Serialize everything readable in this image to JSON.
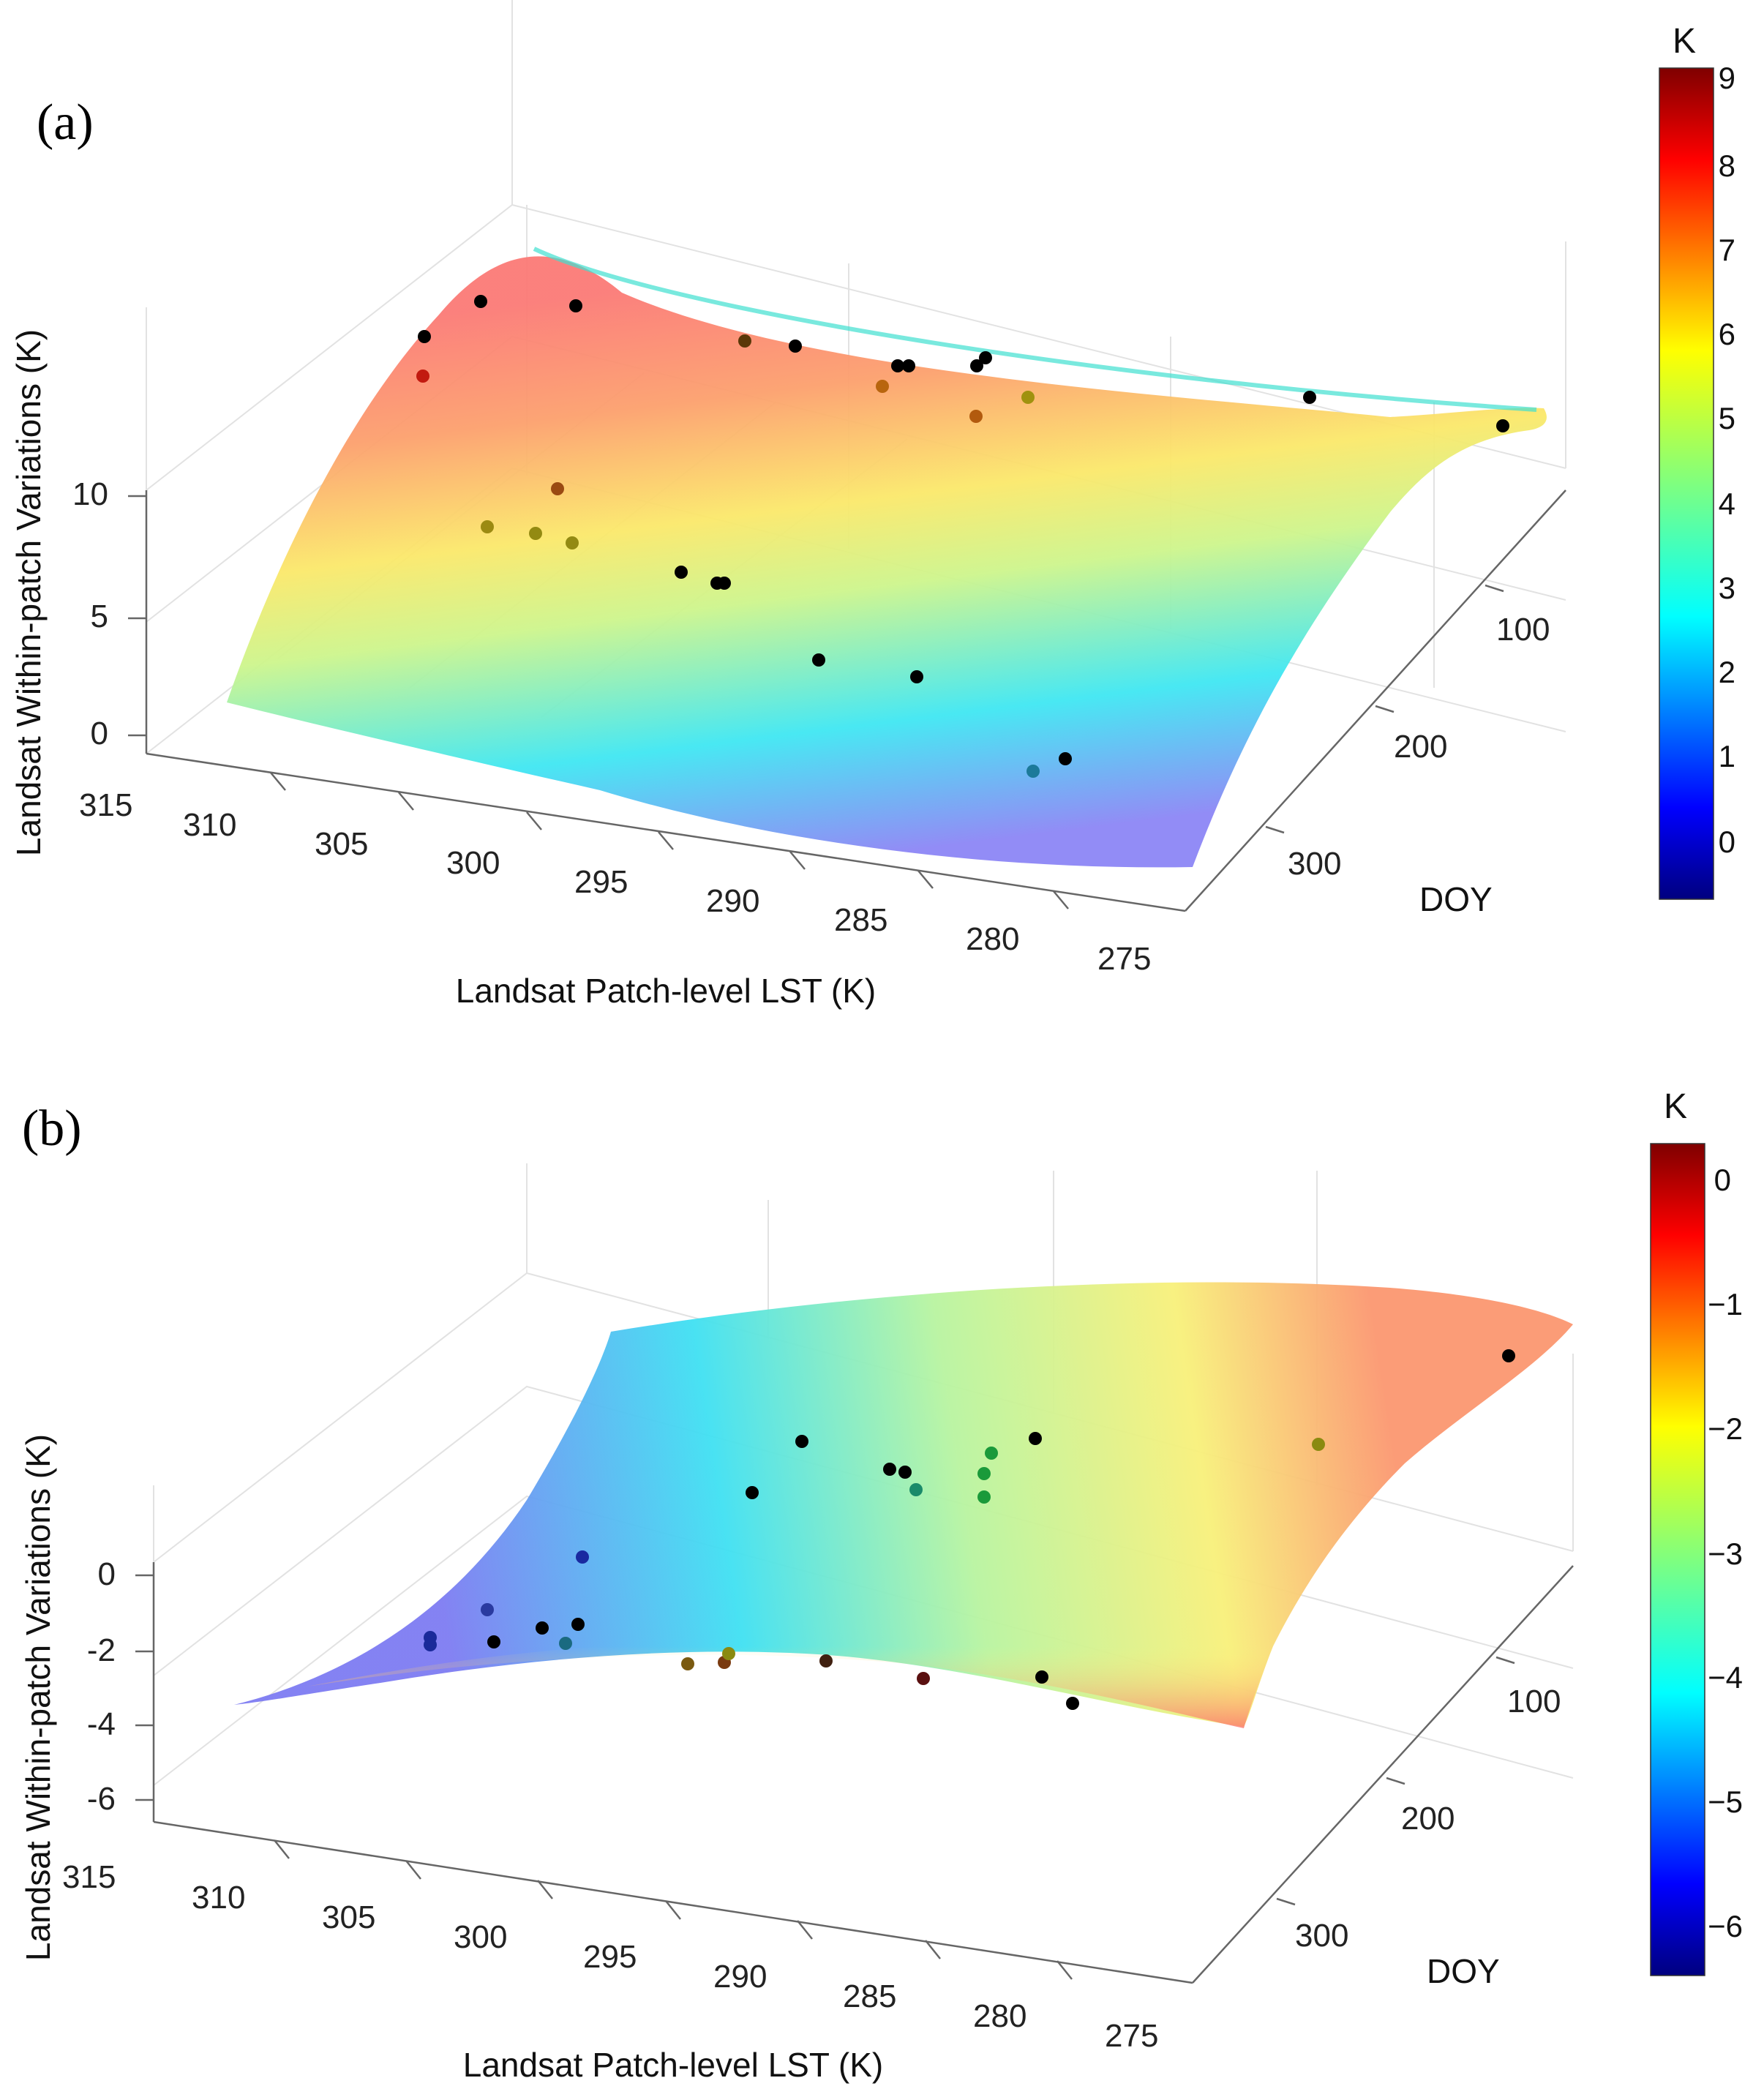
{
  "chart_data": [
    {
      "type": "3d-surface-scatter",
      "panel_label": "(a)",
      "xlabel": "Landsat Patch-level LST (K)",
      "ylabel": "DOY",
      "zlabel": "Landsat Within-patch Variations (K)",
      "x_ticks": [
        "315",
        "310",
        "305",
        "300",
        "295",
        "290",
        "285",
        "280",
        "275"
      ],
      "y_ticks": [
        "100",
        "200",
        "300"
      ],
      "z_ticks": [
        "10",
        "5",
        "0"
      ],
      "xlim": [
        275,
        315
      ],
      "ylim": [
        0,
        365
      ],
      "zlim": [
        0,
        10
      ],
      "colorbar": {
        "title": "K",
        "ticks": [
          "9",
          "8",
          "7",
          "6",
          "5",
          "4",
          "3",
          "2",
          "1",
          "0"
        ],
        "range": [
          -0.6,
          9.1
        ]
      },
      "grid": true,
      "points": [
        {
          "x": 312,
          "y": 60,
          "z": 8.2
        },
        {
          "x": 308,
          "y": 30,
          "z": 8.5
        },
        {
          "x": 305,
          "y": 15,
          "z": 8.0
        },
        {
          "x": 300,
          "y": 40,
          "z": 7.2
        },
        {
          "x": 298,
          "y": 60,
          "z": 6.8
        },
        {
          "x": 295,
          "y": 70,
          "z": 6.6
        },
        {
          "x": 294,
          "y": 75,
          "z": 6.7
        },
        {
          "x": 290,
          "y": 90,
          "z": 6.0
        },
        {
          "x": 287,
          "y": 110,
          "z": 5.8
        },
        {
          "x": 284,
          "y": 120,
          "z": 5.2
        },
        {
          "x": 281,
          "y": 150,
          "z": 5.0
        },
        {
          "x": 278,
          "y": 200,
          "z": 4.2
        },
        {
          "x": 309,
          "y": 120,
          "z": 6.5
        },
        {
          "x": 306,
          "y": 150,
          "z": 6.4
        },
        {
          "x": 303,
          "y": 140,
          "z": 6.5
        },
        {
          "x": 300,
          "y": 170,
          "z": 6.2
        },
        {
          "x": 297,
          "y": 190,
          "z": 5.6
        },
        {
          "x": 293,
          "y": 220,
          "z": 4.4
        },
        {
          "x": 290,
          "y": 240,
          "z": 3.0
        },
        {
          "x": 286,
          "y": 250,
          "z": 2.8
        },
        {
          "x": 283,
          "y": 290,
          "z": 2.0
        },
        {
          "x": 281,
          "y": 300,
          "z": 2.2
        }
      ]
    },
    {
      "type": "3d-surface-scatter",
      "panel_label": "(b)",
      "xlabel": "Landsat Patch-level LST (K)",
      "ylabel": "DOY",
      "zlabel": "Landsat Within-patch Variations (K)",
      "x_ticks": [
        "315",
        "310",
        "305",
        "300",
        "295",
        "290",
        "285",
        "280",
        "275"
      ],
      "y_ticks": [
        "100",
        "200",
        "300"
      ],
      "z_ticks": [
        "0",
        "-2",
        "-4",
        "-6"
      ],
      "xlim": [
        275,
        315
      ],
      "ylim": [
        0,
        365
      ],
      "zlim": [
        -6.5,
        0.5
      ],
      "colorbar": {
        "title": "K",
        "ticks": [
          "0",
          "−1",
          "−2",
          "−3",
          "−4",
          "−5",
          "−6"
        ],
        "range": [
          -6.4,
          0.3
        ]
      },
      "grid": true,
      "points": [
        {
          "x": 311,
          "y": 200,
          "z": -5.0
        },
        {
          "x": 308,
          "y": 190,
          "z": -4.8
        },
        {
          "x": 306,
          "y": 210,
          "z": -4.5
        },
        {
          "x": 303,
          "y": 180,
          "z": -4.2
        },
        {
          "x": 302,
          "y": 160,
          "z": -4.3
        },
        {
          "x": 301,
          "y": 120,
          "z": -4.6
        },
        {
          "x": 298,
          "y": 250,
          "z": -2.3
        },
        {
          "x": 296,
          "y": 255,
          "z": -2.2
        },
        {
          "x": 292,
          "y": 260,
          "z": -1.5
        },
        {
          "x": 288,
          "y": 280,
          "z": -1.1
        },
        {
          "x": 283,
          "y": 290,
          "z": -0.9
        },
        {
          "x": 281,
          "y": 300,
          "z": -0.8
        },
        {
          "x": 296,
          "y": 90,
          "z": -3.6
        },
        {
          "x": 293,
          "y": 60,
          "z": -3.4
        },
        {
          "x": 290,
          "y": 90,
          "z": -3.3
        },
        {
          "x": 289,
          "y": 95,
          "z": -3.4
        },
        {
          "x": 286,
          "y": 95,
          "z": -3.0
        },
        {
          "x": 285,
          "y": 110,
          "z": -3.0
        },
        {
          "x": 284,
          "y": 60,
          "z": -2.9
        },
        {
          "x": 281,
          "y": 70,
          "z": -2.5
        },
        {
          "x": 277,
          "y": 150,
          "z": -1.8
        },
        {
          "x": 275,
          "y": 60,
          "z": -0.9
        }
      ]
    }
  ]
}
